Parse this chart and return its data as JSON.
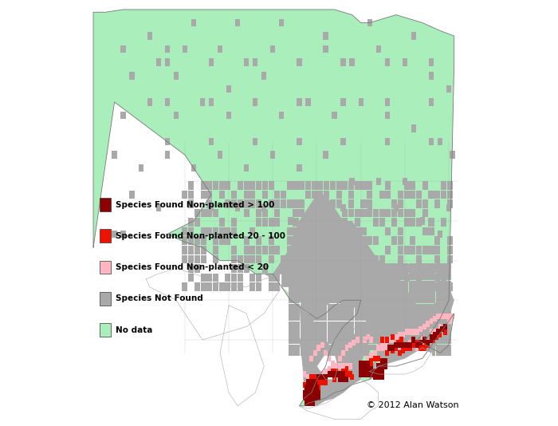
{
  "copyright": "© 2012 Alan Watson",
  "background_color": "#ffffff",
  "legend_items": [
    {
      "label": "Species Found Non-planted > 100",
      "color": "#8B0000"
    },
    {
      "label": "Species Found Non-planted 20 - 100",
      "color": "#EE1100"
    },
    {
      "label": "Species Found Non-planted < 20",
      "color": "#FFB6C1"
    },
    {
      "label": "Species Not Found",
      "color": "#A9A9A9"
    },
    {
      "label": "No data",
      "color": "#AAEEBB"
    }
  ],
  "colors": {
    "no_data": "#AAEEBB",
    "not_found": "#A9A9A9",
    "found_lt20": "#FFB6C1",
    "found_20_100": "#EE1100",
    "found_gt100": "#8B0000",
    "water": "#FFFFFF",
    "border": "#888888"
  },
  "figsize": [
    7.0,
    5.34
  ],
  "dpi": 100,
  "lon_min": -95.5,
  "lon_max": -73.8,
  "lat_min": 41.4,
  "lat_max": 57.2
}
